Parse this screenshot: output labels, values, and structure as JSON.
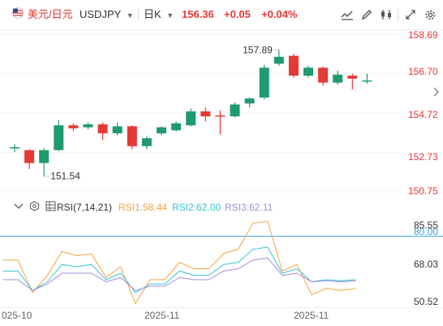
{
  "toolbar": {
    "symbol_cn": "美元/日元",
    "symbol": "USDJPY",
    "period": "日K",
    "last_price": "156.36",
    "change": "+0.05",
    "change_pct": "+0.04%"
  },
  "price_axis": {
    "ticks": [
      "158.69",
      "156.70",
      "154.72",
      "152.73",
      "150.75"
    ]
  },
  "annotations": {
    "high": "157.89",
    "low": "151.54"
  },
  "rsi": {
    "indicator_label": "RSI(7,14,21)",
    "rsi1_label": "RSI1:58.44",
    "rsi2_label": "RSI2:62.00",
    "rsi3_label": "RSI3:62.11",
    "ticks": [
      "85.55",
      "80.00",
      "68.03",
      "50.52"
    ],
    "colors": {
      "rsi1": "#f5a340",
      "rsi2": "#35c4d8",
      "rsi3": "#a68cd6",
      "ref": "#35a3d8"
    }
  },
  "x_axis": {
    "labels": [
      "025-10",
      "2025-11",
      "2025-11"
    ]
  },
  "chart_data": [
    {
      "type": "candlestick",
      "title": "USDJPY 日K",
      "ylim": [
        150.75,
        158.69
      ],
      "candles": [
        {
          "o": 152.95,
          "h": 153.15,
          "l": 152.75,
          "c": 153.0
        },
        {
          "o": 152.85,
          "h": 152.9,
          "l": 151.9,
          "c": 152.2
        },
        {
          "o": 152.2,
          "h": 152.95,
          "l": 151.54,
          "c": 152.85
        },
        {
          "o": 152.85,
          "h": 154.35,
          "l": 152.8,
          "c": 154.1
        },
        {
          "o": 154.1,
          "h": 154.2,
          "l": 153.8,
          "c": 153.95
        },
        {
          "o": 154.0,
          "h": 154.25,
          "l": 153.9,
          "c": 154.15
        },
        {
          "o": 154.15,
          "h": 154.25,
          "l": 153.35,
          "c": 153.7
        },
        {
          "o": 153.7,
          "h": 154.25,
          "l": 153.6,
          "c": 154.05
        },
        {
          "o": 154.05,
          "h": 154.1,
          "l": 152.9,
          "c": 153.05
        },
        {
          "o": 153.05,
          "h": 153.55,
          "l": 152.9,
          "c": 153.45
        },
        {
          "o": 153.7,
          "h": 154.05,
          "l": 153.6,
          "c": 154.0
        },
        {
          "o": 153.85,
          "h": 154.3,
          "l": 153.8,
          "c": 154.2
        },
        {
          "o": 154.1,
          "h": 154.95,
          "l": 154.05,
          "c": 154.8
        },
        {
          "o": 154.8,
          "h": 155.0,
          "l": 154.3,
          "c": 154.55
        },
        {
          "o": 154.6,
          "h": 154.85,
          "l": 153.65,
          "c": 154.55
        },
        {
          "o": 154.55,
          "h": 155.25,
          "l": 154.5,
          "c": 155.15
        },
        {
          "o": 155.2,
          "h": 155.5,
          "l": 155.0,
          "c": 155.45
        },
        {
          "o": 155.5,
          "h": 157.15,
          "l": 155.4,
          "c": 157.0
        },
        {
          "o": 157.2,
          "h": 157.89,
          "l": 157.1,
          "c": 157.55
        },
        {
          "o": 157.6,
          "h": 157.7,
          "l": 156.5,
          "c": 156.6
        },
        {
          "o": 156.6,
          "h": 157.1,
          "l": 156.5,
          "c": 157.0
        },
        {
          "o": 157.0,
          "h": 157.05,
          "l": 156.1,
          "c": 156.25
        },
        {
          "o": 156.25,
          "h": 156.85,
          "l": 156.15,
          "c": 156.65
        },
        {
          "o": 156.6,
          "h": 156.7,
          "l": 155.9,
          "c": 156.45
        },
        {
          "o": 156.35,
          "h": 156.7,
          "l": 156.2,
          "c": 156.36
        }
      ]
    },
    {
      "type": "line",
      "title": "RSI(7,14,21)",
      "ylim": [
        48,
        90
      ],
      "reference": 80.0,
      "series": [
        {
          "name": "RSI1",
          "values": [
            69,
            69,
            54,
            62,
            73,
            71,
            72,
            61,
            66,
            49,
            60,
            60,
            68,
            65,
            65,
            72,
            74,
            86,
            87,
            64,
            67,
            53,
            56,
            55,
            56
          ]
        },
        {
          "name": "RSI2",
          "values": [
            64,
            64,
            55,
            59,
            67,
            66,
            67,
            60,
            63,
            54,
            58,
            58,
            64,
            62,
            62,
            67,
            68,
            74,
            75,
            63,
            65,
            59,
            60,
            59.5,
            60
          ]
        },
        {
          "name": "RSI3",
          "values": [
            60,
            60,
            55,
            58,
            63,
            63,
            63,
            59,
            61,
            55,
            57,
            57,
            61,
            60,
            60,
            64,
            65,
            69,
            70,
            62,
            63,
            59,
            59.5,
            59,
            59.5
          ]
        }
      ]
    }
  ]
}
